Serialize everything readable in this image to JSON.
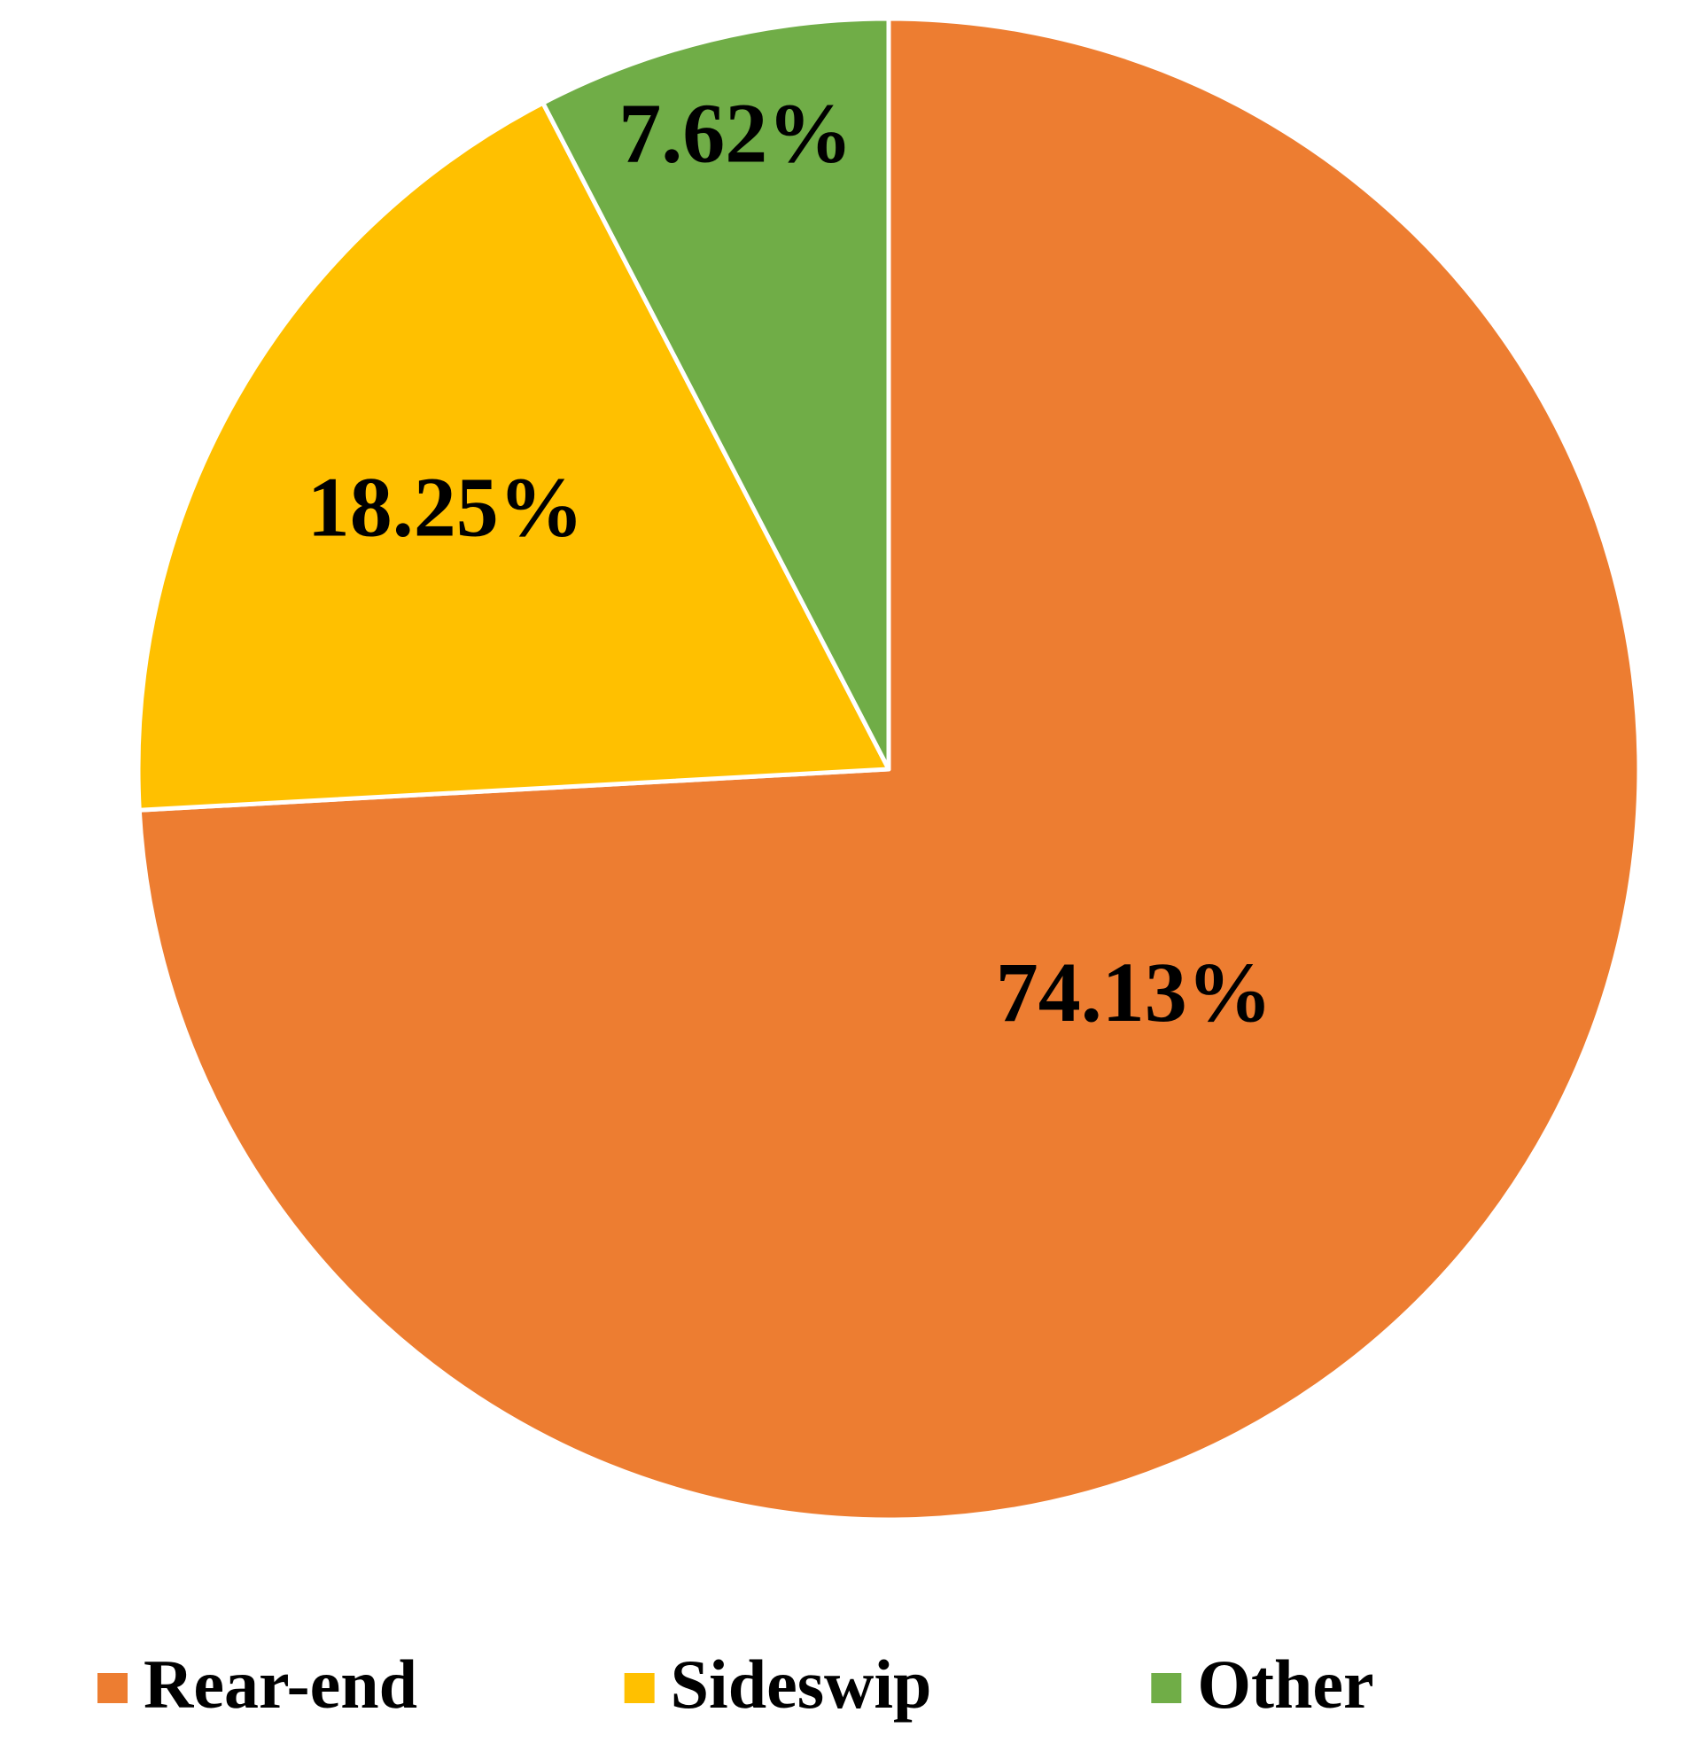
{
  "chart_data": {
    "type": "pie",
    "categories": [
      "Rear-end",
      "Sideswip",
      "Other"
    ],
    "values": [
      74.13,
      18.25,
      7.62
    ],
    "value_labels": [
      "74.13%",
      "18.25%",
      "7.62%"
    ],
    "colors": [
      "#ed7d31",
      "#ffc000",
      "#70ad47"
    ],
    "legend": "bottom"
  }
}
